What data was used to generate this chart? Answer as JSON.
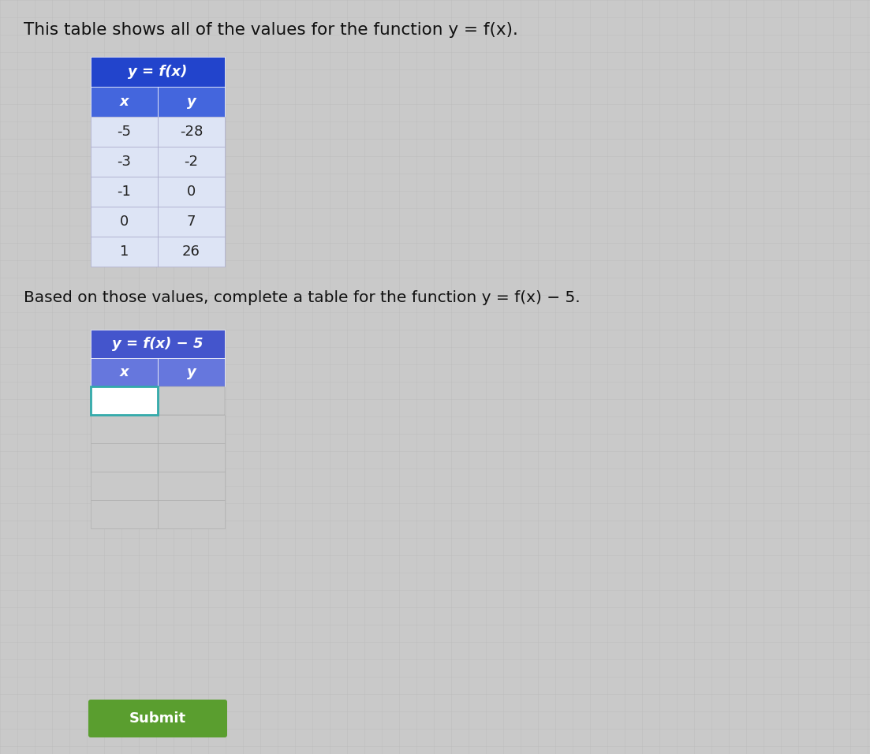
{
  "title": "This table shows all of the values for the function y = f(x).",
  "title_fontsize": 15.5,
  "bg_color": "#c9c9c9",
  "grid_color": "#b8b8b8",
  "table1_header": "y = f(x)",
  "table1_col_headers": [
    "x",
    "y"
  ],
  "table1_data": [
    [
      "-5",
      "-28"
    ],
    [
      "-3",
      "-2"
    ],
    [
      "-1",
      "0"
    ],
    [
      "0",
      "7"
    ],
    [
      "1",
      "26"
    ]
  ],
  "table1_header_bg": "#2244cc",
  "table1_subheader_bg": "#4466dd",
  "table1_cell_bg": "#dde4f5",
  "table1_header_color": "#ffffff",
  "table1_cell_color": "#222222",
  "between_text": "Based on those values, complete a table for the function y = f(x) − 5.",
  "between_fontsize": 14.5,
  "table2_header": "y = f(x) − 5",
  "table2_col_headers": [
    "x",
    "y"
  ],
  "table2_num_rows": 5,
  "table2_header_bg": "#4455cc",
  "table2_subheader_bg": "#6677dd",
  "table2_input_border": "#33aaaa",
  "table2_input_bg": "#ffffff",
  "table2_empty_bg": "#c8d0e8",
  "submit_bg": "#5a9e2f",
  "submit_text": "Submit",
  "submit_text_color": "#ffffff",
  "submit_fontsize": 13
}
